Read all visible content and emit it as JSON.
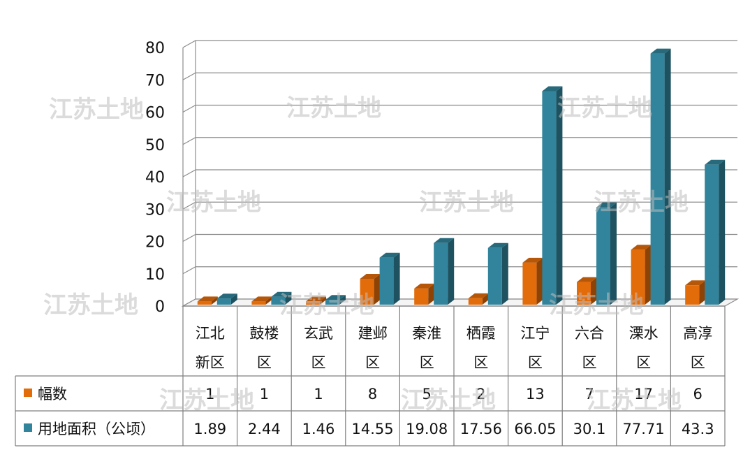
{
  "chart_data": {
    "type": "bar",
    "categories": [
      [
        "江北",
        "新区"
      ],
      [
        "鼓楼",
        "区"
      ],
      [
        "玄武",
        "区"
      ],
      [
        "建邺",
        "区"
      ],
      [
        "秦淮",
        "区"
      ],
      [
        "栖霞",
        "区"
      ],
      [
        "江宁",
        "区"
      ],
      [
        "六合",
        "区"
      ],
      [
        "溧水",
        "区"
      ],
      [
        "高淳",
        "区"
      ]
    ],
    "series": [
      {
        "name": "幅数",
        "color": "#e36c0a",
        "values": [
          1,
          1,
          1,
          8,
          5,
          2,
          13,
          7,
          17,
          6
        ],
        "labels": [
          "1",
          "1",
          "1",
          "8",
          "5",
          "2",
          "13",
          "7",
          "17",
          "6"
        ]
      },
      {
        "name": "用地面积（公顷）",
        "color": "#31849b",
        "values": [
          1.89,
          2.44,
          1.46,
          14.55,
          19.08,
          17.56,
          66.05,
          30.1,
          77.71,
          43.3
        ],
        "labels": [
          "1.89",
          "2.44",
          "1.46",
          "14.55",
          "19.08",
          "17.56",
          "66.05",
          "30.1",
          "77.71",
          "43.3"
        ]
      }
    ],
    "yticks": [
      "0",
      "10",
      "20",
      "30",
      "40",
      "50",
      "60",
      "70",
      "80"
    ],
    "ylim": [
      0,
      80
    ],
    "grid": true,
    "legend": "data-table",
    "style": "3d-clustered-column"
  },
  "watermark": "江苏土地"
}
